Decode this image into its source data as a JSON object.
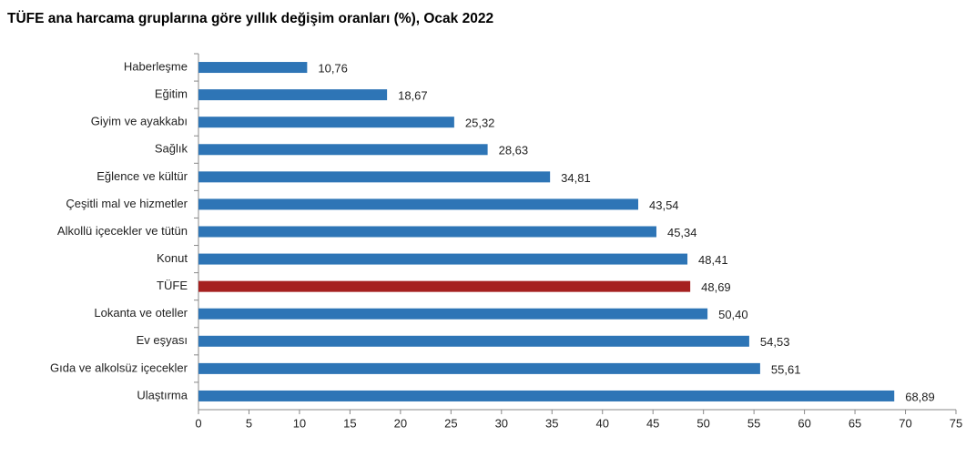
{
  "chart_data": {
    "type": "bar",
    "orientation": "horizontal",
    "title": "TÜFE ana harcama gruplarına göre yıllık değişim oranları (%), Ocak 2022",
    "categories": [
      "Haberleşme",
      "Eğitim",
      "Giyim ve ayakkabı",
      "Sağlık",
      "Eğlence ve kültür",
      "Çeşitli mal ve hizmetler",
      "Alkollü içecekler ve tütün",
      "Konut",
      "TÜFE",
      "Lokanta ve oteller",
      "Ev eşyası",
      "Gıda ve alkolsüz içecekler",
      "Ulaştırma"
    ],
    "values": [
      10.76,
      18.67,
      25.32,
      28.63,
      34.81,
      43.54,
      45.34,
      48.41,
      48.69,
      50.4,
      54.53,
      55.61,
      68.89
    ],
    "value_labels": [
      "10,76",
      "18,67",
      "25,32",
      "28,63",
      "34,81",
      "43,54",
      "45,34",
      "48,41",
      "48,69",
      "50,40",
      "54,53",
      "55,61",
      "68,89"
    ],
    "colors": [
      "#2e75b6",
      "#2e75b6",
      "#2e75b6",
      "#2e75b6",
      "#2e75b6",
      "#2e75b6",
      "#2e75b6",
      "#2e75b6",
      "#a5201f",
      "#2e75b6",
      "#2e75b6",
      "#2e75b6",
      "#2e75b6"
    ],
    "xlim": [
      0,
      75
    ],
    "xticks": [
      0,
      5,
      10,
      15,
      20,
      25,
      30,
      35,
      40,
      45,
      50,
      55,
      60,
      65,
      70,
      75
    ],
    "grid": false
  }
}
